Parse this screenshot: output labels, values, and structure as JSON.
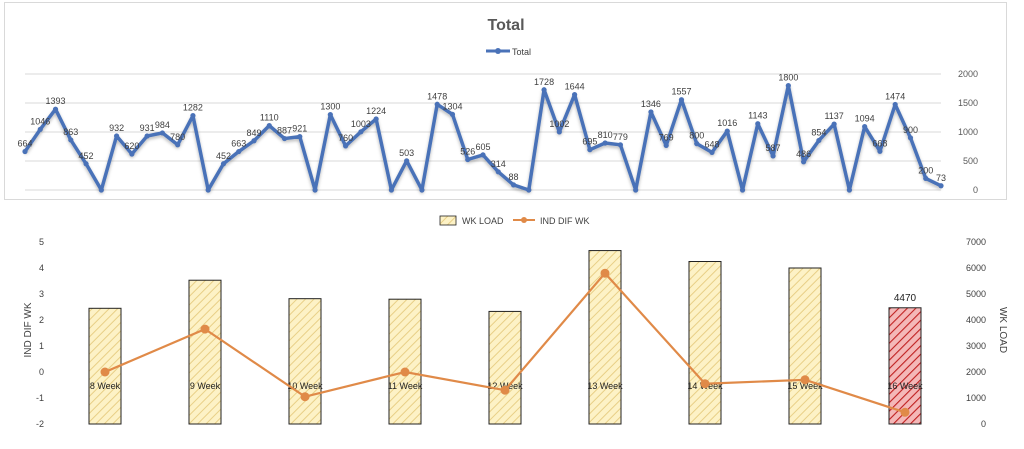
{
  "chart_data": [
    {
      "type": "line",
      "title": "Total",
      "legend_position": "top-center",
      "grid": true,
      "ylim": [
        0,
        2000
      ],
      "yticks": [
        "0",
        "500",
        "1000",
        "1500",
        "2000"
      ],
      "series": [
        {
          "name": "Total",
          "color": "#4a72b8",
          "values": [
            664,
            1046,
            1393,
            863,
            452,
            0,
            932,
            620,
            931,
            984,
            780,
            1282,
            0,
            452,
            663,
            849,
            1110,
            887,
            921,
            0,
            1300,
            760,
            1003,
            1224,
            0,
            503,
            0,
            1478,
            1304,
            526,
            605,
            314,
            88,
            0,
            1728,
            1002,
            1644,
            695,
            810,
            779,
            0,
            1346,
            769,
            1557,
            800,
            648,
            1016,
            0,
            1143,
            587,
            1800,
            486,
            854,
            1137,
            0,
            1094,
            668,
            1474,
            900,
            200,
            73
          ]
        }
      ],
      "data_labels": [
        "664",
        "1046",
        "1393",
        "863",
        "452",
        "",
        "932",
        "620",
        "931",
        "984",
        "780",
        "1282",
        "",
        "452",
        "663",
        "849",
        "1110",
        "887",
        "921",
        "",
        "1300",
        "760",
        "1003",
        "1224",
        "",
        "503",
        "",
        "1478",
        "1304",
        "526",
        "605",
        "314",
        "88",
        "",
        "1728",
        "1002",
        "1644",
        "695",
        "810",
        "779",
        "",
        "1346",
        "769",
        "1557",
        "800",
        "648",
        "1016",
        "",
        "1143",
        "587",
        "1800",
        "486",
        "854",
        "1137",
        "",
        "1094",
        "668",
        "1474",
        "900",
        "200",
        "73"
      ]
    },
    {
      "type": "bar",
      "categories": [
        "8 Week",
        "9 Week",
        "10 Week",
        "11 Week",
        "12 Week",
        "13 Week",
        "14 Week",
        "15 Week",
        "16 Week"
      ],
      "legend_position": "top-center",
      "grid": false,
      "series": [
        {
          "name": "WK LOAD",
          "type": "bar",
          "axis": "right",
          "color": "#fdf2c6",
          "hatch_color": "#e8cf86",
          "highlight_color": "#f4b8b8",
          "highlight_hatch_color": "#c02020",
          "highlight_index": 8,
          "values": [
            4450,
            5530,
            4820,
            4800,
            4330,
            6670,
            6250,
            6000,
            4470
          ]
        },
        {
          "name": "IND DIF WK",
          "type": "line",
          "axis": "left",
          "color": "#e08a48",
          "values": [
            0.0,
            1.65,
            -0.95,
            0.0,
            -0.7,
            3.8,
            -0.45,
            -0.3,
            -1.55
          ]
        }
      ],
      "annotation": "4470",
      "y_left": {
        "label": "IND DIF WK",
        "lim": [
          -2,
          5
        ],
        "ticks": [
          "-2",
          "-1",
          "0",
          "1",
          "2",
          "3",
          "4",
          "5"
        ]
      },
      "y_right": {
        "label": "WK LOAD",
        "lim": [
          0,
          7000
        ],
        "ticks": [
          "0",
          "1000",
          "2000",
          "3000",
          "4000",
          "5000",
          "6000",
          "7000"
        ]
      }
    }
  ]
}
